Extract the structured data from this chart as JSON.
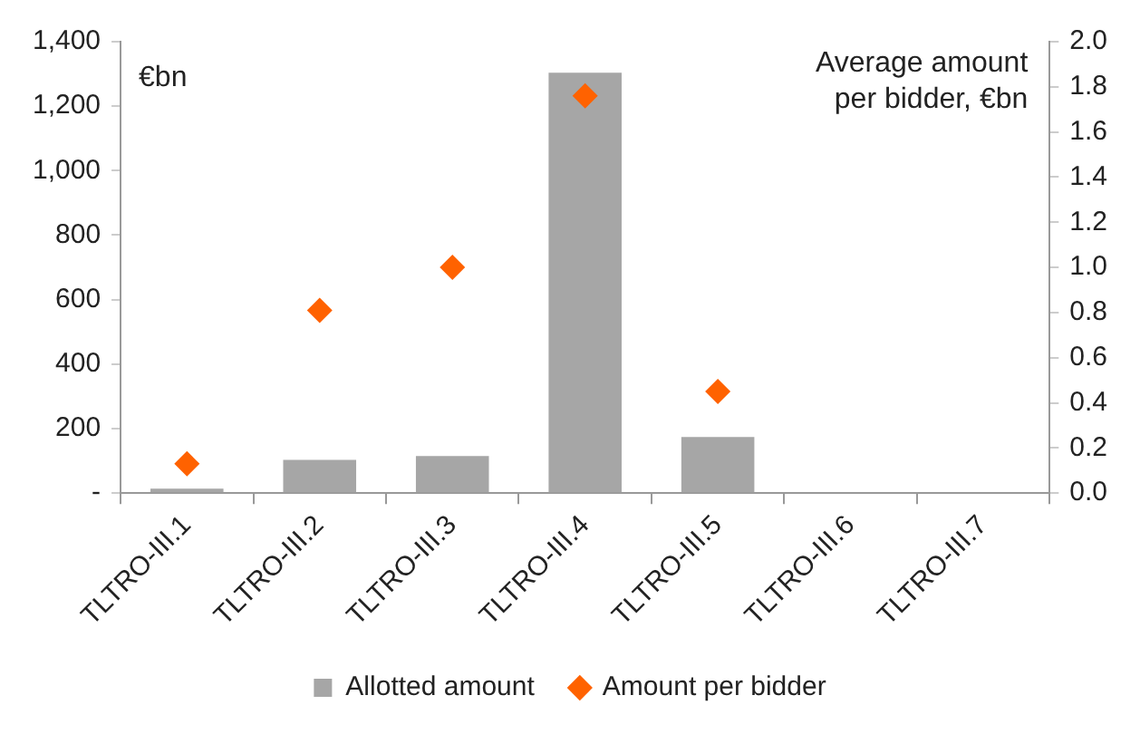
{
  "chart_data": {
    "type": "bar",
    "ylabel": "€bn",
    "y2label": "Average amount per bidder, €bn",
    "categories": [
      "TLTRO-III.1",
      "TLTRO-III.2",
      "TLTRO-III.3",
      "TLTRO-III.4",
      "TLTRO-III.5",
      "TLTRO-III.6",
      "TLTRO-III.7"
    ],
    "series": [
      {
        "name": "Allotted amount",
        "color": "#a6a6a6",
        "values": [
          14,
          103,
          115,
          1304,
          174,
          null,
          null
        ]
      },
      {
        "name": "Amount per bidder",
        "type": "scatter",
        "axis": "y2",
        "color": "#ff6200",
        "marker": "diamond",
        "values": [
          0.13,
          0.81,
          1.0,
          1.76,
          0.45,
          null,
          null
        ]
      }
    ],
    "ylim": [
      0,
      1400
    ],
    "yticks": [
      {
        "value": 0,
        "label": "-"
      },
      200,
      400,
      600,
      800,
      {
        "value": 1000,
        "label": "1,000"
      },
      {
        "value": 1200,
        "label": "1,200"
      },
      {
        "value": 1400,
        "label": "1,400"
      }
    ],
    "y2lim": [
      0,
      2
    ],
    "y2ticks": [
      {
        "value": 0,
        "label": "0.0"
      },
      {
        "value": 0.2,
        "label": "0.2"
      },
      {
        "value": 0.4,
        "label": "0.4"
      },
      {
        "value": 0.6,
        "label": "0.6"
      },
      {
        "value": 0.8,
        "label": "0.8"
      },
      {
        "value": 1,
        "label": "1.0"
      },
      {
        "value": 1.2,
        "label": "1.2"
      },
      {
        "value": 1.4,
        "label": "1.4"
      },
      {
        "value": 1.6,
        "label": "1.6"
      },
      {
        "value": 1.8,
        "label": "1.8"
      },
      {
        "value": 2,
        "label": "2.0"
      }
    ],
    "grid": false,
    "legend": "bottom"
  }
}
